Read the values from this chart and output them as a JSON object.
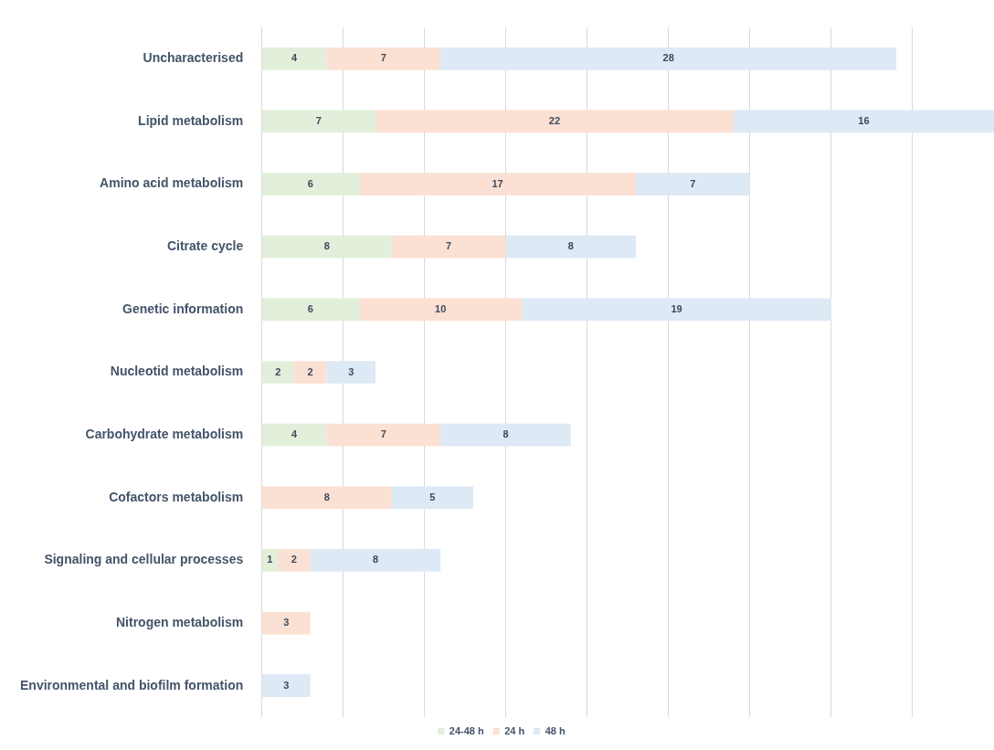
{
  "chart_data": {
    "type": "bar",
    "orientation": "horizontal",
    "stacked": true,
    "grid": "x",
    "legend": "bottom",
    "tick_labels": "y",
    "data_labels": true,
    "categories": [
      "Uncharacterised",
      "Lipid metabolism",
      "Amino acid metabolism",
      "Citrate cycle",
      "Genetic information",
      "Nucleotid metabolism",
      "Carbohydrate metabolism",
      "Cofactors metabolism",
      "Signaling and cellular processes",
      "Nitrogen metabolism",
      "Environmental and biofilm formation"
    ],
    "series": [
      {
        "name": "24-48 h",
        "color": "#e2efda",
        "values": [
          4,
          7,
          6,
          8,
          6,
          2,
          4,
          null,
          1,
          null,
          null
        ]
      },
      {
        "name": "24 h",
        "color": "#fbe1d3",
        "values": [
          7,
          22,
          17,
          7,
          10,
          2,
          7,
          8,
          2,
          3,
          null
        ]
      },
      {
        "name": "48 h",
        "color": "#dde9f5",
        "values": [
          28,
          16,
          7,
          8,
          19,
          3,
          8,
          5,
          8,
          null,
          3
        ]
      }
    ]
  }
}
